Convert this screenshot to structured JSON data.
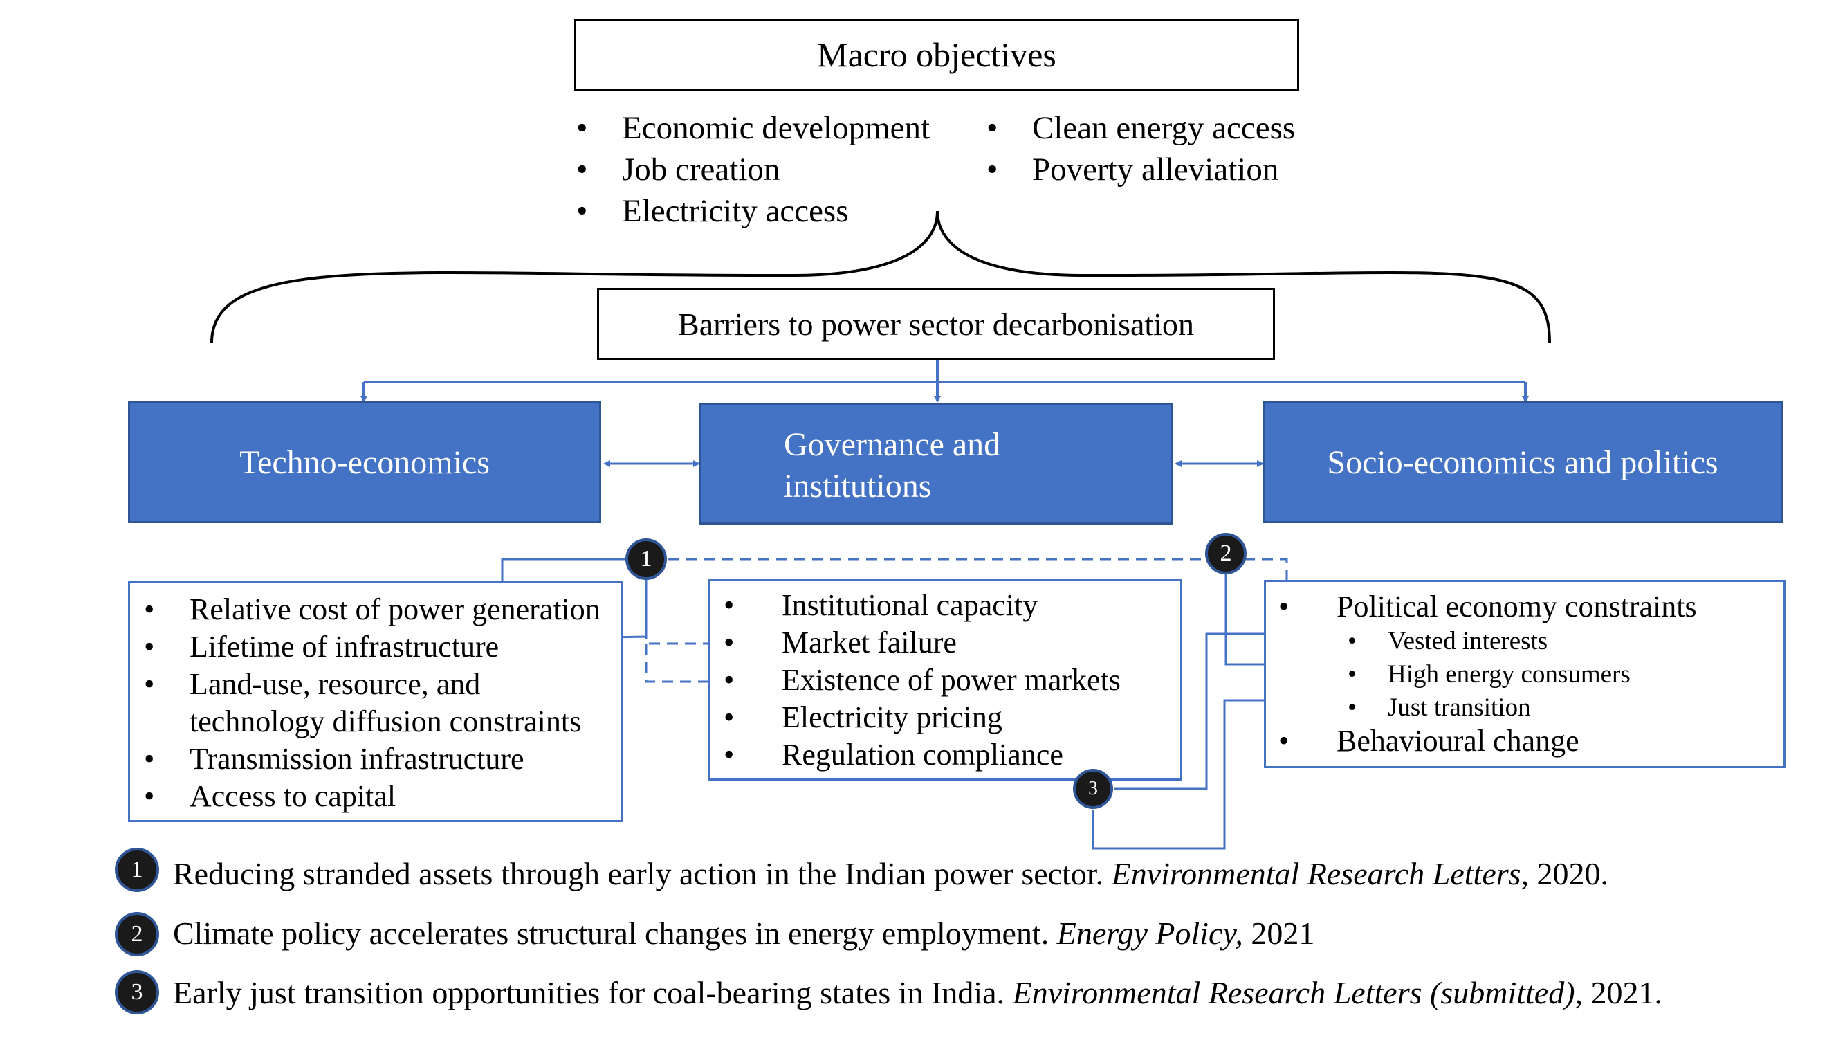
{
  "macro": {
    "title": "Macro objectives",
    "col1": [
      "Economic development",
      "Job creation",
      "Electricity access"
    ],
    "col2": [
      "Clean energy access",
      "Poverty alleviation"
    ]
  },
  "barriers_title": "Barriers to power sector decarbonisation",
  "categories": {
    "techno": "Techno-economics",
    "governance_l1": "Governance and",
    "governance_l2": "institutions",
    "socio": "Socio-economics and politics"
  },
  "techno_list": [
    "Relative cost of power generation",
    "Lifetime of infrastructure",
    "Land-use, resource, and",
    "technology diffusion constraints",
    "Transmission infrastructure",
    "Access to capital"
  ],
  "governance_list": [
    "Institutional capacity",
    "Market failure",
    "Existence of power markets",
    "Electricity pricing",
    "Regulation compliance"
  ],
  "socio_list": {
    "political": "Political economy constraints",
    "sub": [
      "Vested interests",
      "High energy consumers",
      "Just transition"
    ],
    "behavioural": "Behavioural change"
  },
  "bullet": "•",
  "badges": [
    "1",
    "2",
    "3"
  ],
  "references": [
    {
      "num": "1",
      "text": "Reducing stranded assets through early action in the Indian power sector. ",
      "journal": "Environmental Research Letters",
      "year": ", 2020."
    },
    {
      "num": "2",
      "text": "Climate policy accelerates structural changes in energy employment. ",
      "journal": "Energy Policy,",
      "year": " 2021"
    },
    {
      "num": "3",
      "text": "Early just transition opportunities for coal-bearing states in India. ",
      "journal": "Environmental Research Letters (submitted)",
      "year": ", 2021."
    }
  ],
  "colors": {
    "blue": "#4472C4",
    "dark_blue": "#2F5597",
    "badge": "#1a1a1a"
  }
}
